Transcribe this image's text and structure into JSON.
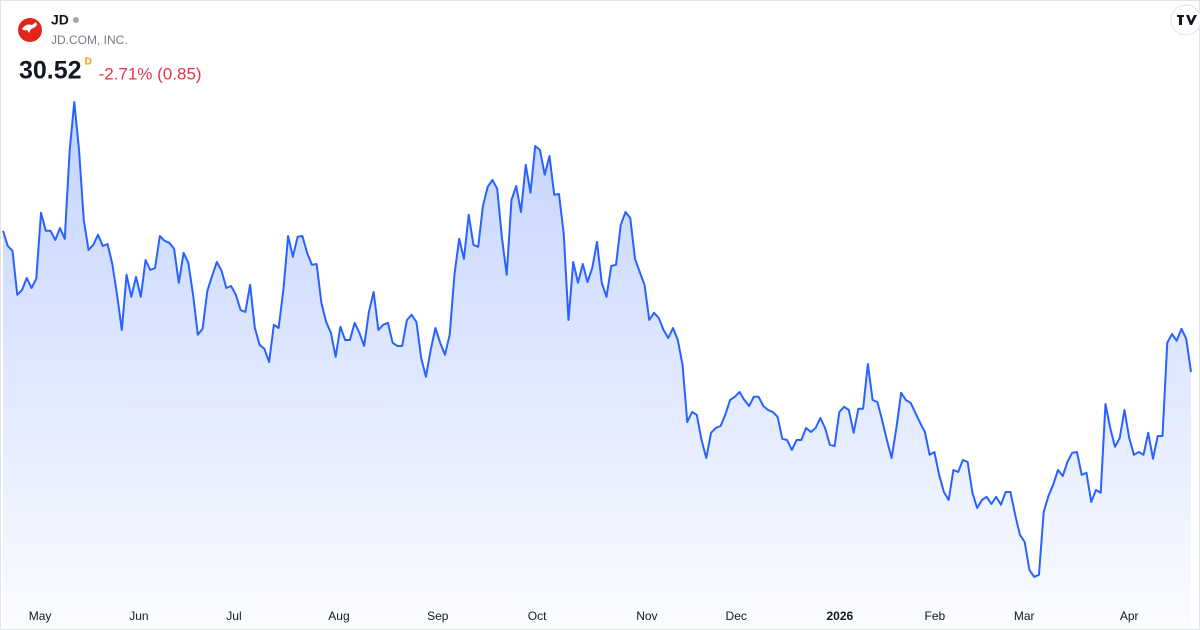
{
  "chart_data": {
    "type": "area",
    "title": "JD",
    "subtitle": "JD.COM, INC.",
    "last_price": "30.52",
    "interval": "D",
    "change": "-2.71% (0.85)",
    "color": "#2962ff",
    "values": [
      34.05,
      33.67,
      33.55,
      32.45,
      32.57,
      32.87,
      32.62,
      32.85,
      34.5,
      34.05,
      34.05,
      33.82,
      34.12,
      33.85,
      36.02,
      37.27,
      36.07,
      34.32,
      33.57,
      33.7,
      33.95,
      33.67,
      33.72,
      33.22,
      32.45,
      31.57,
      32.95,
      32.4,
      32.9,
      32.4,
      33.32,
      33.07,
      33.12,
      33.92,
      33.8,
      33.75,
      33.6,
      32.75,
      33.5,
      33.25,
      32.45,
      31.45,
      31.6,
      32.55,
      32.92,
      33.27,
      33.05,
      32.62,
      32.67,
      32.45,
      32.07,
      32.02,
      32.7,
      31.62,
      31.2,
      31.1,
      30.77,
      31.7,
      31.62,
      32.57,
      33.92,
      33.4,
      33.9,
      33.92,
      33.5,
      33.2,
      33.22,
      32.25,
      31.77,
      31.5,
      30.9,
      31.65,
      31.32,
      31.32,
      31.75,
      31.5,
      31.17,
      32.02,
      32.52,
      31.57,
      31.7,
      31.75,
      31.25,
      31.17,
      31.17,
      31.82,
      31.95,
      31.77,
      30.87,
      30.4,
      31.07,
      31.62,
      31.25,
      30.95,
      31.45,
      32.95,
      33.85,
      33.35,
      34.45,
      33.7,
      33.65,
      34.67,
      35.15,
      35.32,
      35.1,
      33.87,
      32.95,
      34.82,
      35.17,
      34.52,
      35.7,
      35.0,
      36.17,
      36.07,
      35.45,
      35.92,
      34.95,
      34.97,
      33.97,
      31.82,
      33.27,
      32.75,
      33.22,
      32.77,
      33.12,
      33.77,
      32.75,
      32.4,
      33.17,
      33.2,
      34.2,
      34.52,
      34.37,
      33.35,
      33.02,
      32.7,
      31.82,
      32.0,
      31.87,
      31.57,
      31.37,
      31.62,
      31.32,
      30.7,
      29.27,
      29.52,
      29.45,
      28.82,
      28.37,
      29.0,
      29.12,
      29.17,
      29.45,
      29.82,
      29.9,
      30.02,
      29.82,
      29.67,
      29.9,
      29.9,
      29.67,
      29.57,
      29.52,
      29.4,
      28.85,
      28.82,
      28.57,
      28.82,
      28.82,
      29.12,
      29.02,
      29.12,
      29.37,
      29.12,
      28.7,
      28.67,
      29.52,
      29.65,
      29.57,
      29.0,
      29.6,
      29.6,
      30.72,
      29.82,
      29.77,
      29.32,
      28.82,
      28.37,
      29.12,
      30.0,
      29.82,
      29.75,
      29.5,
      29.25,
      29.02,
      28.45,
      28.52,
      27.95,
      27.52,
      27.32,
      28.07,
      28.02,
      28.32,
      28.27,
      27.5,
      27.12,
      27.32,
      27.4,
      27.22,
      27.4,
      27.2,
      27.52,
      27.52,
      26.95,
      26.45,
      26.27,
      25.57,
      25.4,
      25.45,
      27.02,
      27.42,
      27.7,
      28.07,
      27.92,
      28.27,
      28.5,
      28.52,
      27.95,
      28.0,
      27.27,
      27.57,
      27.5,
      29.72,
      29.12,
      28.65,
      28.87,
      29.57,
      28.87,
      28.45,
      28.52,
      28.45,
      29.0,
      28.35,
      28.92,
      28.92,
      31.25,
      31.47,
      31.3,
      31.6,
      31.35,
      30.52
    ],
    "xlim": [
      0,
      250
    ],
    "xticks": [
      {
        "value": 7.8,
        "label": "May"
      },
      {
        "value": 28.6,
        "label": "Jun"
      },
      {
        "value": 48.6,
        "label": "Jul"
      },
      {
        "value": 70.7,
        "label": "Aug"
      },
      {
        "value": 91.5,
        "label": "Sep"
      },
      {
        "value": 112.4,
        "label": "Oct"
      },
      {
        "value": 135.5,
        "label": "Nov"
      },
      {
        "value": 154.3,
        "label": "Dec"
      },
      {
        "value": 176.1,
        "label": "2026",
        "bold": true
      },
      {
        "value": 196.1,
        "label": "Feb"
      },
      {
        "value": 214.9,
        "label": "Mar"
      },
      {
        "value": 237.0,
        "label": "Apr"
      }
    ],
    "ylim": [
      24.82,
      38.32
    ]
  }
}
